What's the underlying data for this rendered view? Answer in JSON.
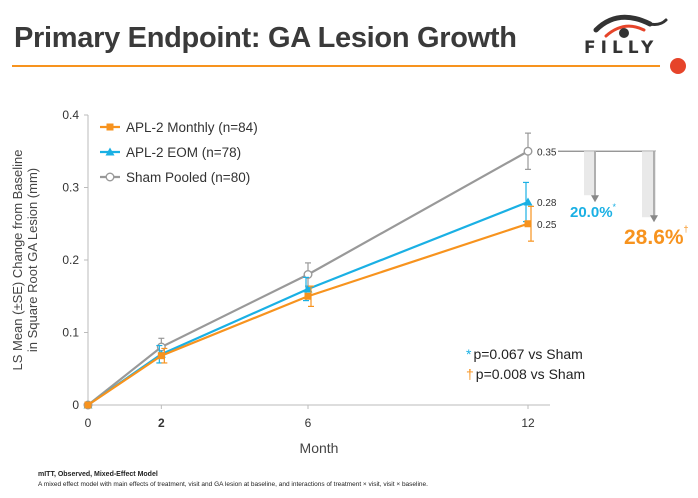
{
  "header": {
    "title": "Primary Endpoint: GA Lesion Growth",
    "logo_text": "FILLY"
  },
  "chart_data": {
    "type": "line",
    "x": [
      0,
      2,
      6,
      12
    ],
    "xticks": [
      "0",
      "2",
      "6",
      "12"
    ],
    "yticks": [
      "0",
      "0.1",
      "0.2",
      "0.3",
      "0.4"
    ],
    "xlim": [
      0,
      12.6
    ],
    "ylim": [
      0,
      0.4
    ],
    "xlabel": "Month",
    "ylabel": "LS Mean (±SE) Change from Baseline in Square Root GA Lesion (mm)",
    "ylabel_lines": [
      "LS Mean (±SE) Change from Baseline",
      "in Square Root GA Lesion (mm)"
    ],
    "grid": false,
    "legend_position": "top-left",
    "series": [
      {
        "name": "APL-2 Monthly (n=84)",
        "values": [
          0,
          0.068,
          0.15,
          0.25
        ],
        "errors": [
          0,
          0.01,
          0.014,
          0.024
        ],
        "color": "#f7931e",
        "marker": "square"
      },
      {
        "name": "APL-2 EOM (n=78)",
        "values": [
          0,
          0.07,
          0.16,
          0.28
        ],
        "errors": [
          0,
          0.012,
          0.016,
          0.027
        ],
        "color": "#1ab0e4",
        "marker": "triangle"
      },
      {
        "name": "Sham Pooled (n=80)",
        "values": [
          0,
          0.08,
          0.18,
          0.35
        ],
        "errors": [
          0,
          0.012,
          0.016,
          0.025
        ],
        "color": "#999999",
        "marker": "circle-open"
      }
    ],
    "end_labels": [
      "0.35",
      "0.28",
      "0.25"
    ],
    "reductions": [
      {
        "value": "20.0%",
        "symbol": "*",
        "color": "#1ab0e4"
      },
      {
        "value": "28.6%",
        "symbol": "†",
        "color": "#f7931e"
      }
    ],
    "pvalues": [
      {
        "symbol": "*",
        "text": "p=0.067 vs Sham",
        "color": "#1ab0e4"
      },
      {
        "symbol": "†",
        "text": "p=0.008 vs Sham",
        "color": "#f7931e"
      }
    ]
  },
  "footer": {
    "title": "mITT, Observed, Mixed-Effect Model",
    "note": "A mixed effect model with main effects of treatment, visit and GA lesion at baseline, and interactions of treatment × visit, visit × baseline."
  }
}
